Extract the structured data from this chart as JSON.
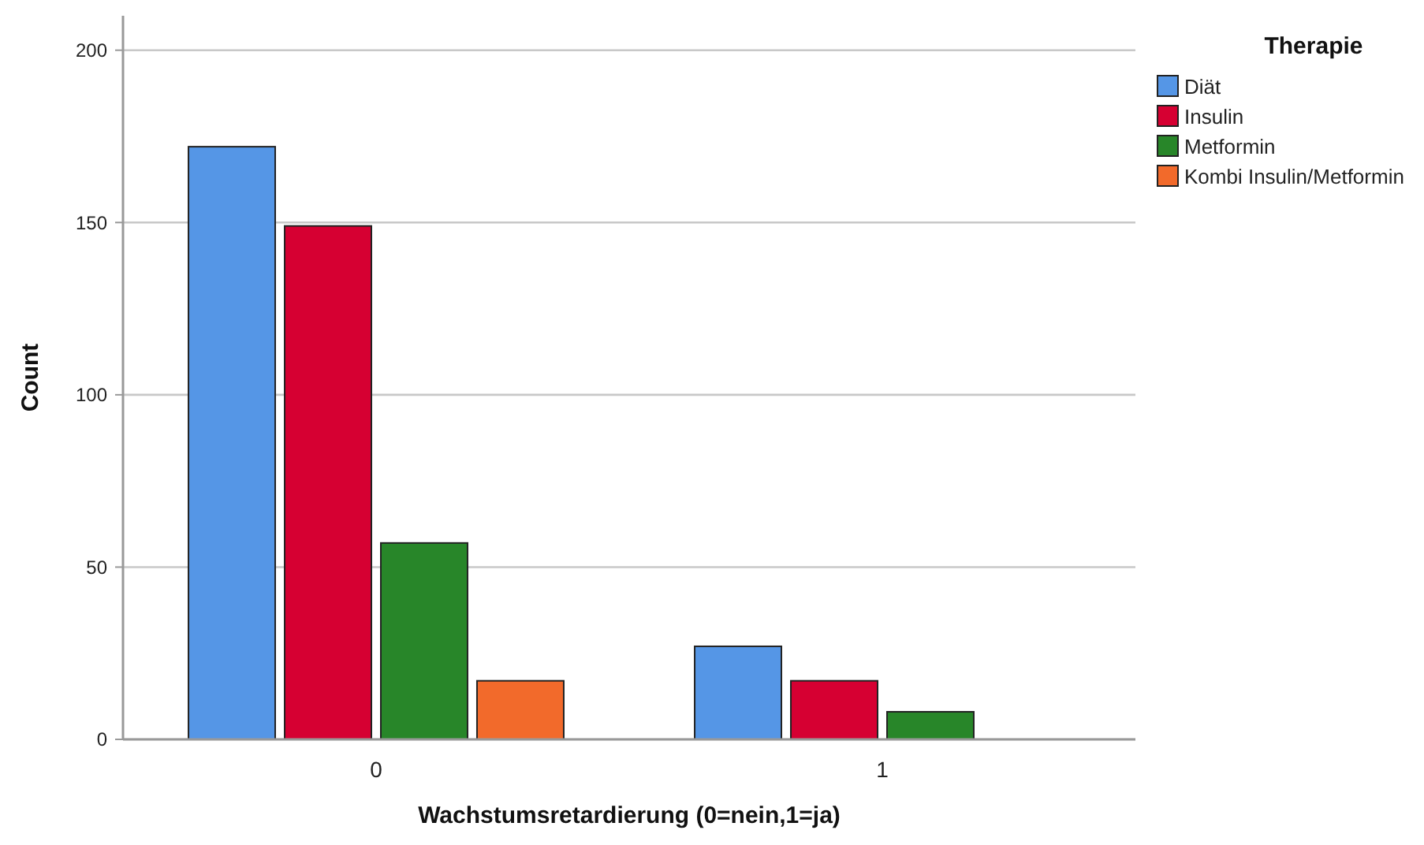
{
  "chart_data": {
    "type": "bar",
    "xlabel": "Wachstumsretardierung (0=nein,1=ja)",
    "ylabel": "Count",
    "legend_title": "Therapie",
    "categories": [
      "0",
      "1"
    ],
    "series": [
      {
        "name": "Diät",
        "color": "#5596e6",
        "values": [
          172,
          27
        ]
      },
      {
        "name": "Insulin",
        "color": "#d60032",
        "values": [
          149,
          17
        ]
      },
      {
        "name": "Metformin",
        "color": "#288629",
        "values": [
          57,
          8
        ]
      },
      {
        "name": "Kombi Insulin/Metformin",
        "color": "#f26a2b",
        "values": [
          17,
          null
        ]
      }
    ],
    "ylim": [
      0,
      210
    ],
    "yticks": [
      0,
      50,
      100,
      150,
      200
    ],
    "grid": "y",
    "legend": "top right"
  }
}
